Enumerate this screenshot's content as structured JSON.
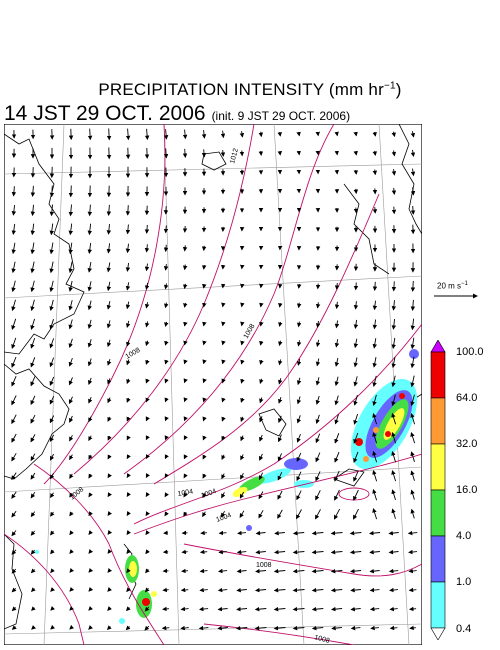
{
  "header": {
    "title": "PRECIPITATION INTENSITY (mm hr",
    "title_exp": "−1",
    "title_close": ")",
    "valid_time": "14 JST 29 OCT. 2006",
    "init_time": "(init. 9 JST 29 OCT. 2006)"
  },
  "map": {
    "isobar_labels": [
      "1012",
      "1008",
      "1008",
      "1004",
      "1004",
      "1008",
      "1004",
      "1008",
      "1008"
    ],
    "isobar_color": "#c0106a",
    "coast_color": "#000000",
    "grid_color": "#999999"
  },
  "wind_scale": {
    "label": "20 m s",
    "label_exp": "−1"
  },
  "legend": {
    "levels": [
      "100.0",
      "64.0",
      "32.0",
      "16.0",
      "4.0",
      "1.0",
      "0.4"
    ],
    "colors": [
      "#cc00ff",
      "#ee0000",
      "#ff9933",
      "#ffff44",
      "#44dd44",
      "#6666ff",
      "#66ffff",
      "#ffffff"
    ]
  }
}
